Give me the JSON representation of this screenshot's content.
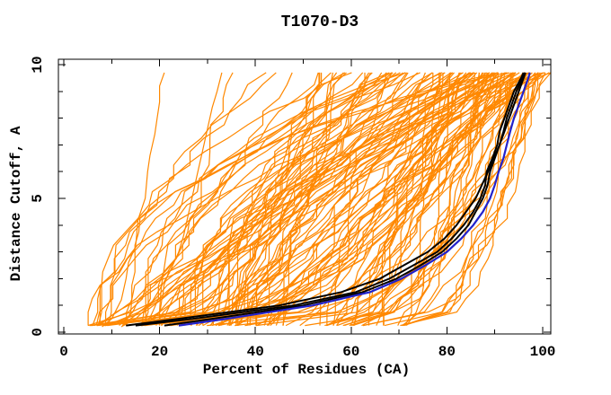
{
  "title": "T1070-D3",
  "axes": {
    "x": {
      "label": "Percent of Residues (CA)",
      "min": 0,
      "max": 100,
      "major_ticks": [
        0,
        20,
        40,
        60,
        80,
        100
      ],
      "major_tick_labels": [
        "0",
        "20",
        "40",
        "60",
        "80",
        "100"
      ],
      "minor_ticks": [
        10,
        30,
        50,
        70,
        90
      ]
    },
    "y": {
      "label": "Distance Cutoff, A",
      "min": 0,
      "max": 10,
      "major_ticks": [
        0,
        5,
        10
      ],
      "major_tick_labels": [
        "0",
        "5",
        "10"
      ],
      "minor_ticks": [
        1,
        2,
        3,
        4,
        6,
        7,
        8,
        9
      ]
    }
  },
  "colors": {
    "background": "#ffffff",
    "frame": "#000000",
    "models": "#ff8800",
    "best_models": "#000000",
    "highlight_model": "#2222cc",
    "text": "#000000"
  },
  "chart_data": {
    "type": "line",
    "title": "T1070-D3",
    "xlabel": "Percent of Residues (CA)",
    "ylabel": "Distance Cutoff, A",
    "xlim": [
      0,
      100
    ],
    "ylim": [
      0,
      10
    ],
    "grid": false,
    "legend": null,
    "description": "CASP-style per-model accuracy curves: percent of CA residues (x) under each distance cutoff in Angstroms (y). Orange = all submitted models, black = best models, blue = highlighted model.",
    "series": [
      {
        "name": "best-model-1",
        "color": "#000000",
        "width": 2,
        "points": [
          [
            15,
            0.25
          ],
          [
            27,
            0.5
          ],
          [
            48,
            1.0
          ],
          [
            61,
            1.5
          ],
          [
            68,
            2.0
          ],
          [
            73,
            2.5
          ],
          [
            78,
            3.0
          ],
          [
            81,
            3.5
          ],
          [
            83.5,
            4.0
          ],
          [
            85.5,
            4.5
          ],
          [
            87,
            5.0
          ],
          [
            88,
            5.5
          ],
          [
            88.3,
            6.0
          ],
          [
            89.5,
            6.5
          ],
          [
            90.5,
            7.0
          ],
          [
            91,
            7.5
          ],
          [
            92,
            8.0
          ],
          [
            93,
            8.5
          ],
          [
            94,
            9.0
          ],
          [
            95.5,
            9.5
          ],
          [
            96,
            9.7
          ]
        ]
      },
      {
        "name": "best-model-2",
        "color": "#000000",
        "width": 2,
        "points": [
          [
            21,
            0.25
          ],
          [
            31,
            0.5
          ],
          [
            50,
            1.0
          ],
          [
            62.5,
            1.5
          ],
          [
            69.5,
            2.0
          ],
          [
            74.5,
            2.5
          ],
          [
            79,
            3.0
          ],
          [
            82,
            3.5
          ],
          [
            84.5,
            4.0
          ],
          [
            86,
            4.5
          ],
          [
            87.5,
            5.0
          ],
          [
            88.5,
            5.5
          ],
          [
            89,
            6.0
          ],
          [
            90,
            6.5
          ],
          [
            91,
            7.0
          ],
          [
            91.8,
            7.5
          ],
          [
            92.5,
            8.0
          ],
          [
            93.5,
            8.5
          ],
          [
            94.5,
            9.0
          ],
          [
            95.8,
            9.5
          ],
          [
            96.3,
            9.7
          ]
        ]
      },
      {
        "name": "best-model-3",
        "color": "#000000",
        "width": 2,
        "points": [
          [
            13,
            0.25
          ],
          [
            24,
            0.5
          ],
          [
            45,
            1.0
          ],
          [
            58,
            1.5
          ],
          [
            66,
            2.0
          ],
          [
            71,
            2.5
          ],
          [
            76,
            3.0
          ],
          [
            79.5,
            3.5
          ],
          [
            82,
            4.0
          ],
          [
            84,
            4.5
          ],
          [
            86,
            5.0
          ],
          [
            87.3,
            5.5
          ],
          [
            88.6,
            6.0
          ],
          [
            89.8,
            6.5
          ],
          [
            91,
            7.0
          ],
          [
            92,
            7.5
          ],
          [
            93,
            8.0
          ],
          [
            94,
            8.5
          ],
          [
            95,
            9.0
          ],
          [
            96,
            9.5
          ],
          [
            96.4,
            9.7
          ]
        ]
      },
      {
        "name": "highlight-model",
        "color": "#2222cc",
        "width": 2.2,
        "points": [
          [
            24,
            0.25
          ],
          [
            34,
            0.5
          ],
          [
            52,
            1.0
          ],
          [
            64,
            1.5
          ],
          [
            70.5,
            2.0
          ],
          [
            75.5,
            2.5
          ],
          [
            80,
            3.0
          ],
          [
            83,
            3.5
          ],
          [
            85.5,
            4.0
          ],
          [
            87.5,
            4.5
          ],
          [
            89,
            5.0
          ],
          [
            90,
            5.5
          ],
          [
            90.8,
            6.0
          ],
          [
            91.8,
            6.5
          ],
          [
            92.5,
            7.0
          ],
          [
            93.2,
            7.5
          ],
          [
            94,
            8.0
          ],
          [
            95,
            8.5
          ],
          [
            96,
            9.0
          ],
          [
            97,
            9.5
          ],
          [
            97.3,
            9.7
          ]
        ]
      }
    ],
    "orange_extra_curves": [
      {
        "name": "model-curve-left-outlier-1",
        "points": [
          [
            8,
            0.2
          ],
          [
            10,
            0.5
          ],
          [
            12,
            1.2
          ],
          [
            13,
            2.0
          ],
          [
            13.5,
            2.6
          ],
          [
            15,
            3.2
          ],
          [
            15.5,
            4.2
          ],
          [
            17,
            5.0
          ],
          [
            17.5,
            6.0
          ],
          [
            18,
            6.6
          ],
          [
            19,
            7.4
          ],
          [
            19.5,
            8.0
          ],
          [
            20,
            8.6
          ],
          [
            20,
            9.2
          ],
          [
            21,
            9.7
          ]
        ]
      },
      {
        "name": "model-curve-left-outlier-2",
        "points": [
          [
            12,
            0.2
          ],
          [
            15,
            0.5
          ],
          [
            18,
            1.0
          ],
          [
            20,
            1.6
          ],
          [
            22,
            2.2
          ],
          [
            24,
            3.0
          ],
          [
            25,
            3.6
          ],
          [
            26,
            4.4
          ],
          [
            27,
            5.2
          ],
          [
            28,
            6.0
          ],
          [
            29,
            6.8
          ],
          [
            30,
            7.6
          ],
          [
            31,
            8.4
          ],
          [
            32,
            9.0
          ],
          [
            33,
            9.7
          ]
        ]
      }
    ],
    "orange_ensemble": {
      "name": "all-models",
      "color": "#ff8800",
      "count": 130,
      "seed": 42,
      "width": 1.2,
      "y_start": 0.25,
      "y_end": 9.7,
      "y_step": 0.5,
      "start_x_range": [
        5,
        72
      ],
      "start_bias_exp": 1.4,
      "min_span": 10,
      "end_x_max": 101.5,
      "end_bias_exp": 0.45,
      "shape_base": 0.3,
      "shape_spread": 2.4,
      "jitter": 3.0
    }
  }
}
